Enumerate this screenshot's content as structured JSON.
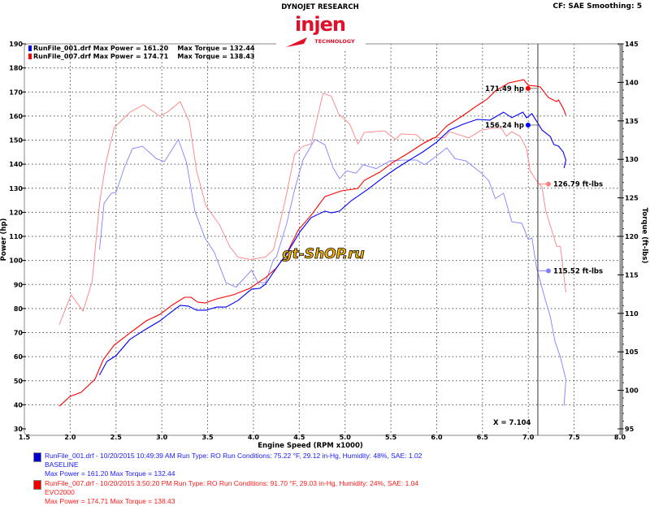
{
  "header": {
    "brand": "DYNOJET RESEARCH",
    "logo_main": "injen",
    "logo_sub": "TECHNOLOGY",
    "settings": "CF: SAE  Smoothing: 5"
  },
  "watermark": "gt-ShOP.ru",
  "top_legend": [
    {
      "file": "RunFile_001.drf Max Power = 161.20",
      "torque": "Max Torque = 132.44",
      "color": "#0000ff"
    },
    {
      "file": "RunFile_007.drf Max Power = 174.71",
      "torque": "Max Torque = 138.43",
      "color": "#ff0000"
    }
  ],
  "bottom_legend": [
    {
      "line1": "RunFile_001.drf - 10/20/2015 10:49:39 AM  Run Type: RO  Run Conditions: 75.22 °F, 29.12 in-Hg,  Humidity:  48%, SAE: 1.02",
      "line2": "BASELINE",
      "line3": "Max Power = 161.20  Max Torque = 132.44",
      "color": "#1a1aff"
    },
    {
      "line1": "RunFile_007.drf - 10/20/2015 3:50:20 PM  Run Type: RO  Run Conditions: 91.70 °F, 29.03 in-Hg,  Humidity:  24%, SAE: 1.04",
      "line2": "EVO2000",
      "line3": "Max Power = 174.71  Max Torque = 138.43",
      "color": "#ff1a1a"
    }
  ],
  "chart_data": {
    "type": "line",
    "xlabel": "Engine Speed (RPM x1000)",
    "ylabel": "Power (hp)",
    "y2label": "Torque (ft-lbs)",
    "xlim": [
      1.5,
      8.0
    ],
    "ylim": [
      30,
      190
    ],
    "y2lim": [
      95,
      145
    ],
    "x_ticks": [
      "1.5",
      "2.0",
      "2.5",
      "3.0",
      "3.5",
      "4.0",
      "4.5",
      "5.0",
      "5.5",
      "6.0",
      "6.5",
      "7.0",
      "7.5",
      "8.0"
    ],
    "y_ticks": [
      "30",
      "40",
      "50",
      "60",
      "70",
      "80",
      "90",
      "100",
      "110",
      "120",
      "130",
      "140",
      "150",
      "160",
      "170",
      "180",
      "190"
    ],
    "y2_ticks": [
      "95",
      "100",
      "105",
      "110",
      "115",
      "120",
      "125",
      "130",
      "135",
      "140",
      "145"
    ],
    "grid": true,
    "cursor": {
      "x": 7.104,
      "label": "X = 7.104"
    },
    "series": [
      {
        "name": "RunFile_001.drf Power",
        "axis": "left",
        "color": "#0000ff",
        "x": [
          2.32,
          2.4,
          2.5,
          2.65,
          2.8,
          2.98,
          3.07,
          3.2,
          3.29,
          3.38,
          3.48,
          3.6,
          3.7,
          3.83,
          3.98,
          4.07,
          4.13,
          4.25,
          4.36,
          4.51,
          4.63,
          4.78,
          4.85,
          4.94,
          5.07,
          5.25,
          5.4,
          5.55,
          5.69,
          5.85,
          6.0,
          6.14,
          6.29,
          6.44,
          6.58,
          6.73,
          6.82,
          6.94,
          6.98,
          7.04,
          7.15,
          7.24,
          7.28,
          7.33,
          7.38,
          7.41,
          7.39
        ],
        "y": [
          52.3,
          58.0,
          60.4,
          67.1,
          70.8,
          74.9,
          77.6,
          81.3,
          81.0,
          79.3,
          79.3,
          80.6,
          80.6,
          83.3,
          88.1,
          88.4,
          90.1,
          96.8,
          102.6,
          112.0,
          117.8,
          120.5,
          119.8,
          120.5,
          124.9,
          129.6,
          134.0,
          138.0,
          141.4,
          145.1,
          149.2,
          154.2,
          156.6,
          158.6,
          158.3,
          161.6,
          159.3,
          161.6,
          159.3,
          161.0,
          154.2,
          151.5,
          148.1,
          147.5,
          145.1,
          141.7,
          138.4
        ]
      },
      {
        "name": "RunFile_007.drf Power",
        "axis": "left",
        "color": "#ff0000",
        "x": [
          1.88,
          2.0,
          2.12,
          2.27,
          2.36,
          2.48,
          2.65,
          2.83,
          2.98,
          3.12,
          3.25,
          3.32,
          3.39,
          3.47,
          3.6,
          3.78,
          3.96,
          4.13,
          4.25,
          4.36,
          4.49,
          4.63,
          4.78,
          4.96,
          5.14,
          5.21,
          5.38,
          5.52,
          5.67,
          5.85,
          6.0,
          6.11,
          6.29,
          6.44,
          6.55,
          6.64,
          6.79,
          6.95,
          7.0,
          7.09,
          7.13,
          7.22,
          7.31,
          7.33,
          7.38,
          7.41
        ],
        "y": [
          39.4,
          43.5,
          45.2,
          50.6,
          58.7,
          64.8,
          69.8,
          74.9,
          77.6,
          81.6,
          84.7,
          84.7,
          82.7,
          82.3,
          84.0,
          85.7,
          88.4,
          92.8,
          96.8,
          102.6,
          112.7,
          118.8,
          126.5,
          128.9,
          129.9,
          133.3,
          136.7,
          140.7,
          144.1,
          148.5,
          151.5,
          155.9,
          160.3,
          164.3,
          167.0,
          170.4,
          173.8,
          175.1,
          172.8,
          172.4,
          172.1,
          167.7,
          166.0,
          166.7,
          163.3,
          160.3
        ]
      },
      {
        "name": "RunFile_001.drf Torque",
        "axis": "right",
        "color": "#8080ff",
        "x": [
          2.32,
          2.37,
          2.45,
          2.5,
          2.59,
          2.68,
          2.79,
          2.94,
          3.03,
          3.18,
          3.27,
          3.36,
          3.47,
          3.57,
          3.7,
          3.81,
          3.98,
          4.05,
          4.13,
          4.22,
          4.25,
          4.36,
          4.45,
          4.54,
          4.67,
          4.78,
          4.87,
          4.94,
          5.02,
          5.12,
          5.2,
          5.34,
          5.49,
          5.64,
          5.78,
          5.87,
          5.96,
          6.11,
          6.2,
          6.32,
          6.49,
          6.57,
          6.64,
          6.73,
          6.82,
          6.93,
          7.0,
          7.04,
          7.09,
          7.18,
          7.24,
          7.29,
          7.35,
          7.41,
          7.39
        ],
        "y": [
          118.3,
          124.3,
          125.6,
          125.7,
          128.9,
          131.4,
          131.7,
          130.1,
          129.7,
          132.6,
          129.6,
          123.3,
          119.8,
          118.0,
          114.0,
          113.4,
          115.6,
          114.0,
          114.0,
          117.0,
          117.3,
          121.5,
          126.1,
          129.9,
          132.6,
          131.9,
          128.9,
          127.5,
          128.5,
          128.2,
          129.3,
          128.8,
          129.8,
          129.9,
          129.9,
          129.3,
          130.1,
          131.5,
          130.1,
          129.8,
          128.2,
          127.2,
          124.9,
          125.6,
          121.9,
          121.7,
          119.6,
          119.8,
          115.9,
          112.0,
          109.6,
          106.4,
          104.3,
          101.4,
          98.0
        ]
      },
      {
        "name": "RunFile_007.drf Torque",
        "axis": "right",
        "color": "#ff8080",
        "x": [
          1.88,
          2.01,
          2.14,
          2.24,
          2.32,
          2.39,
          2.48,
          2.65,
          2.8,
          2.98,
          3.07,
          3.2,
          3.3,
          3.38,
          3.48,
          3.63,
          3.74,
          3.83,
          3.97,
          4.13,
          4.22,
          4.34,
          4.45,
          4.54,
          4.63,
          4.76,
          4.85,
          4.93,
          5.05,
          5.14,
          5.21,
          5.43,
          5.55,
          5.61,
          5.78,
          5.87,
          5.96,
          6.08,
          6.14,
          6.35,
          6.49,
          6.64,
          6.71,
          6.76,
          6.82,
          6.91,
          6.98,
          7.02,
          7.09,
          7.15,
          7.19,
          7.31,
          7.35,
          7.41
        ],
        "y": [
          108.5,
          112.4,
          110.3,
          114.1,
          124.3,
          129.6,
          134.1,
          136.1,
          137.1,
          135.6,
          136.2,
          137.5,
          134.9,
          128.5,
          124.0,
          121.5,
          118.7,
          117.3,
          117.0,
          117.3,
          118.3,
          124.3,
          130.7,
          131.7,
          132.0,
          138.6,
          138.2,
          135.9,
          134.6,
          132.0,
          133.5,
          133.7,
          132.6,
          133.3,
          133.2,
          132.2,
          132.8,
          132.8,
          133.6,
          132.8,
          133.8,
          134.1,
          134.0,
          133.0,
          133.6,
          133.0,
          131.4,
          128.5,
          127.2,
          126.4,
          123.3,
          118.7,
          118.7,
          112.7
        ]
      }
    ],
    "annotations": [
      {
        "text": "171.49 hp",
        "series": "RunFile_007.drf Power",
        "value": 171.49,
        "axis": "left",
        "color": "#ff0000"
      },
      {
        "text": "156.24 hp",
        "series": "RunFile_001.drf Power",
        "value": 156.24,
        "axis": "left",
        "color": "#0000ff"
      },
      {
        "text": "126.79 ft-lbs",
        "series": "RunFile_007.drf Torque",
        "value": 126.79,
        "axis": "right",
        "color": "#ff8080"
      },
      {
        "text": "115.52 ft-lbs",
        "series": "RunFile_001.drf Torque",
        "value": 115.52,
        "axis": "right",
        "color": "#8080ff"
      }
    ]
  }
}
